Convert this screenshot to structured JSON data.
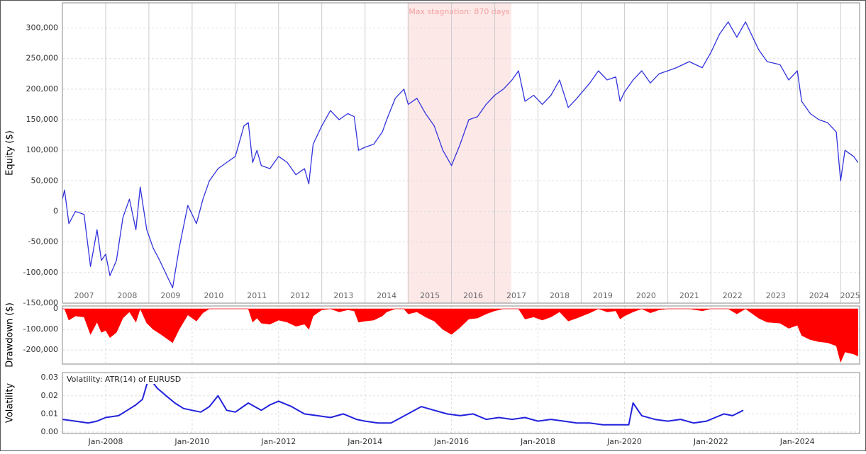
{
  "chart_data": [
    {
      "type": "line",
      "ylabel": "Equity ($)",
      "color": "#3333dd",
      "grid": true,
      "xlim": [
        2007,
        2025.44
      ],
      "ylim": [
        -150000,
        340000
      ],
      "xticks": [
        2007,
        2008,
        2009,
        2010,
        2011,
        2012,
        2013,
        2014,
        2015,
        2016,
        2017,
        2018,
        2019,
        2020,
        2021,
        2022,
        2023,
        2024,
        2025
      ],
      "yticks": [
        {
          "value": -150000,
          "label": "-150,000"
        },
        {
          "value": -100000,
          "label": "-100,000"
        },
        {
          "value": -50000,
          "label": "-50,000"
        },
        0,
        {
          "value": 50000,
          "label": "50,000"
        },
        {
          "value": 100000,
          "label": "100,000"
        },
        {
          "value": 150000,
          "label": "150,000"
        },
        {
          "value": 200000,
          "label": "200,000"
        },
        {
          "value": 250000,
          "label": "250,000"
        },
        {
          "value": 300000,
          "label": "300,000"
        }
      ],
      "annotations": [
        {
          "text": "Max stagnation: 870 days",
          "x": [
            2014.98,
            2017.38
          ],
          "color": "#fde8e8"
        }
      ],
      "x": [
        2007.0,
        2007.05,
        2007.15,
        2007.3,
        2007.5,
        2007.65,
        2007.8,
        2007.9,
        2008.0,
        2008.1,
        2008.25,
        2008.4,
        2008.55,
        2008.7,
        2008.8,
        2008.95,
        2009.1,
        2009.25,
        2009.45,
        2009.55,
        2009.7,
        2009.9,
        2010.1,
        2010.25,
        2010.4,
        2010.6,
        2010.8,
        2011.0,
        2011.2,
        2011.3,
        2011.4,
        2011.5,
        2011.6,
        2011.8,
        2012.0,
        2012.2,
        2012.4,
        2012.6,
        2012.7,
        2012.8,
        2013.0,
        2013.2,
        2013.4,
        2013.6,
        2013.75,
        2013.85,
        2014.0,
        2014.2,
        2014.4,
        2014.5,
        2014.7,
        2014.9,
        2015.0,
        2015.2,
        2015.4,
        2015.6,
        2015.8,
        2016.0,
        2016.2,
        2016.4,
        2016.6,
        2016.8,
        2017.0,
        2017.2,
        2017.4,
        2017.55,
        2017.7,
        2017.9,
        2018.1,
        2018.3,
        2018.5,
        2018.7,
        2018.9,
        2019.2,
        2019.4,
        2019.6,
        2019.8,
        2019.9,
        2020.0,
        2020.2,
        2020.4,
        2020.6,
        2020.8,
        2021.0,
        2021.2,
        2021.5,
        2021.8,
        2022.0,
        2022.2,
        2022.4,
        2022.6,
        2022.8,
        2022.9,
        2023.1,
        2023.3,
        2023.6,
        2023.8,
        2024.0,
        2024.1,
        2024.3,
        2024.5,
        2024.7,
        2024.9,
        2025.0,
        2025.1,
        2025.3,
        2025.4
      ],
      "values": [
        20000,
        35000,
        -20000,
        0,
        -5000,
        -90000,
        -30000,
        -80000,
        -70000,
        -105000,
        -80000,
        -10000,
        20000,
        -30000,
        40000,
        -30000,
        -60000,
        -80000,
        -110000,
        -125000,
        -60000,
        10000,
        -20000,
        20000,
        50000,
        70000,
        80000,
        90000,
        140000,
        145000,
        80000,
        100000,
        75000,
        70000,
        90000,
        80000,
        60000,
        70000,
        45000,
        110000,
        140000,
        165000,
        150000,
        160000,
        155000,
        100000,
        105000,
        110000,
        130000,
        150000,
        185000,
        200000,
        175000,
        185000,
        160000,
        140000,
        100000,
        75000,
        110000,
        150000,
        155000,
        175000,
        190000,
        200000,
        215000,
        230000,
        180000,
        190000,
        175000,
        190000,
        215000,
        170000,
        185000,
        210000,
        230000,
        215000,
        220000,
        180000,
        195000,
        215000,
        230000,
        210000,
        225000,
        230000,
        235000,
        245000,
        235000,
        260000,
        290000,
        310000,
        285000,
        310000,
        295000,
        265000,
        245000,
        240000,
        215000,
        230000,
        180000,
        160000,
        150000,
        145000,
        130000,
        50000,
        100000,
        90000,
        80000
      ]
    },
    {
      "type": "area",
      "ylabel": "Drawdown ($)",
      "color": "#ff0000",
      "grid": true,
      "xlim": [
        2007,
        2025.44
      ],
      "ylim": [
        -265000,
        0
      ],
      "yticks": [
        {
          "value": -200000,
          "label": "-200,000"
        },
        {
          "value": -100000,
          "label": "-100,000"
        },
        0
      ],
      "xticks": [
        2008,
        2010,
        2012,
        2014,
        2016,
        2018,
        2020,
        2022,
        2024
      ],
      "x": [
        2007.0,
        2007.05,
        2007.15,
        2007.3,
        2007.5,
        2007.65,
        2007.8,
        2007.9,
        2008.0,
        2008.1,
        2008.25,
        2008.4,
        2008.55,
        2008.7,
        2008.8,
        2008.95,
        2009.1,
        2009.25,
        2009.45,
        2009.55,
        2009.7,
        2009.9,
        2010.1,
        2010.25,
        2010.4,
        2010.6,
        2010.8,
        2011.0,
        2011.2,
        2011.3,
        2011.4,
        2011.5,
        2011.6,
        2011.8,
        2012.0,
        2012.2,
        2012.4,
        2012.6,
        2012.7,
        2012.8,
        2013.0,
        2013.2,
        2013.4,
        2013.6,
        2013.75,
        2013.85,
        2014.0,
        2014.2,
        2014.4,
        2014.5,
        2014.7,
        2014.9,
        2015.0,
        2015.2,
        2015.4,
        2015.6,
        2015.8,
        2016.0,
        2016.2,
        2016.4,
        2016.6,
        2016.8,
        2017.0,
        2017.2,
        2017.4,
        2017.55,
        2017.7,
        2017.9,
        2018.1,
        2018.3,
        2018.5,
        2018.7,
        2018.9,
        2019.2,
        2019.4,
        2019.6,
        2019.8,
        2019.9,
        2020.0,
        2020.2,
        2020.4,
        2020.6,
        2020.8,
        2021.0,
        2021.2,
        2021.5,
        2021.8,
        2022.0,
        2022.2,
        2022.4,
        2022.6,
        2022.8,
        2022.9,
        2023.1,
        2023.3,
        2023.6,
        2023.8,
        2024.0,
        2024.1,
        2024.3,
        2024.5,
        2024.7,
        2024.9,
        2025.0,
        2025.1,
        2025.3,
        2025.4
      ],
      "values": [
        0,
        0,
        -55000,
        -35000,
        -40000,
        -125000,
        -65000,
        -115000,
        -105000,
        -140000,
        -115000,
        -45000,
        -15000,
        -65000,
        0,
        -70000,
        -100000,
        -120000,
        -150000,
        -165000,
        -100000,
        -30000,
        -60000,
        -20000,
        0,
        0,
        0,
        0,
        0,
        0,
        -65000,
        -45000,
        -70000,
        -75000,
        -55000,
        -65000,
        -85000,
        -75000,
        -100000,
        -35000,
        -5000,
        0,
        -15000,
        -5000,
        -10000,
        -65000,
        -60000,
        -55000,
        -35000,
        -15000,
        0,
        0,
        -25000,
        -15000,
        -40000,
        -60000,
        -100000,
        -125000,
        -90000,
        -50000,
        -45000,
        -25000,
        -10000,
        0,
        0,
        0,
        -50000,
        -40000,
        -55000,
        -40000,
        -15000,
        -60000,
        -45000,
        -20000,
        0,
        -15000,
        -10000,
        -50000,
        -35000,
        -15000,
        0,
        -20000,
        -5000,
        0,
        0,
        0,
        -10000,
        0,
        0,
        0,
        -25000,
        0,
        -15000,
        -45000,
        -65000,
        -70000,
        -95000,
        -80000,
        -130000,
        -150000,
        -160000,
        -165000,
        -180000,
        -260000,
        -210000,
        -220000,
        -230000
      ]
    },
    {
      "type": "line",
      "ylabel": "Volatility",
      "color": "#2222dd",
      "grid": true,
      "annotations": [
        {
          "text": "Volatility: ATR(14) of EURUSD"
        }
      ],
      "xlim": [
        2007,
        2025.44
      ],
      "ylim": [
        0,
        0.032
      ],
      "yticks": [
        {
          "value": 0,
          "label": "0.00"
        },
        0.01,
        0.02,
        0.03
      ],
      "xticks": [
        {
          "value": 2008,
          "label": "Jan-2008"
        },
        {
          "value": 2010,
          "label": "Jan-2010"
        },
        {
          "value": 2012,
          "label": "Jan-2012"
        },
        {
          "value": 2014,
          "label": "Jan-2014"
        },
        {
          "value": 2016,
          "label": "Jan-2016"
        },
        {
          "value": 2018,
          "label": "Jan-2018"
        },
        {
          "value": 2020,
          "label": "Jan-2020"
        },
        {
          "value": 2022,
          "label": "Jan-2022"
        },
        {
          "value": 2024,
          "label": "Jan-2024"
        }
      ],
      "x": [
        2007.0,
        2007.3,
        2007.6,
        2007.8,
        2008.0,
        2008.3,
        2008.5,
        2008.7,
        2008.85,
        2009.0,
        2009.2,
        2009.4,
        2009.6,
        2009.8,
        2010.0,
        2010.2,
        2010.4,
        2010.6,
        2010.8,
        2011.0,
        2011.3,
        2011.6,
        2011.8,
        2012.0,
        2012.3,
        2012.6,
        2012.9,
        2013.2,
        2013.5,
        2013.8,
        2014.0,
        2014.3,
        2014.6,
        2015.3,
        2015.6,
        2015.9,
        2016.2,
        2016.5,
        2016.8,
        2017.1,
        2017.4,
        2017.7,
        2018.0,
        2018.3,
        2018.6,
        2018.9,
        2019.2,
        2019.5,
        2019.8,
        2020.1,
        2020.2,
        2020.4,
        2020.7,
        2021.0,
        2021.3,
        2021.6,
        2021.9,
        2022.1,
        2022.3,
        2022.5,
        2022.75
      ],
      "values": [
        0.007,
        0.006,
        0.005,
        0.006,
        0.008,
        0.009,
        0.012,
        0.015,
        0.018,
        0.03,
        0.024,
        0.02,
        0.016,
        0.013,
        0.012,
        0.011,
        0.014,
        0.02,
        0.012,
        0.011,
        0.016,
        0.012,
        0.015,
        0.017,
        0.014,
        0.01,
        0.009,
        0.008,
        0.01,
        0.007,
        0.006,
        0.005,
        0.005,
        0.014,
        0.012,
        0.01,
        0.009,
        0.01,
        0.007,
        0.008,
        0.007,
        0.008,
        0.006,
        0.007,
        0.006,
        0.005,
        0.005,
        0.004,
        0.004,
        0.004,
        0.016,
        0.009,
        0.007,
        0.006,
        0.007,
        0.005,
        0.006,
        0.008,
        0.01,
        0.009,
        0.012
      ]
    }
  ]
}
